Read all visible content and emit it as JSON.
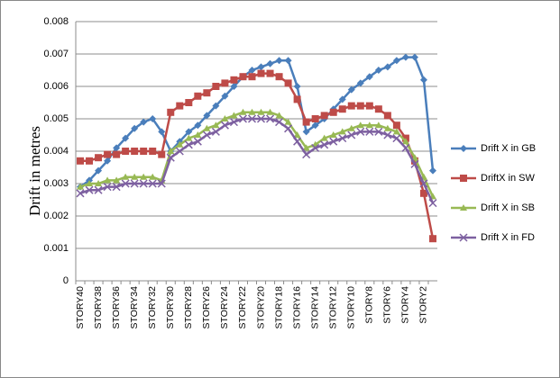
{
  "chart_data": {
    "type": "line",
    "y_label": "Drift in metres",
    "categories": [
      "STORY40",
      null,
      "STORY38",
      null,
      "STORY36",
      null,
      "STORY34",
      null,
      "STORY32",
      null,
      "STORY30",
      null,
      "STORY28",
      null,
      "STORY26",
      null,
      "STORY24",
      null,
      "STORY22",
      null,
      "STORY20",
      null,
      "STORY18",
      null,
      "STORY16",
      null,
      "STORY14",
      null,
      "STORY12",
      null,
      "STORY10",
      null,
      "STORY8",
      null,
      "STORY6",
      null,
      "STORY4",
      null,
      "STORY2",
      null
    ],
    "ylim": [
      0,
      0.008
    ],
    "yticks": [
      0,
      0.001,
      0.002,
      0.003,
      0.004,
      0.005,
      0.006,
      0.007,
      0.008
    ],
    "grid": true,
    "legend": "right",
    "series": [
      {
        "name": "Drift X in GB",
        "color": "#4a7ebb",
        "marker": "diamond",
        "values": [
          0.0029,
          0.0031,
          0.0034,
          0.0037,
          0.0041,
          0.0044,
          0.0047,
          0.0049,
          0.005,
          0.0046,
          0.004,
          0.0043,
          0.0046,
          0.0048,
          0.0051,
          0.0054,
          0.0057,
          0.006,
          0.0063,
          0.0065,
          0.0066,
          0.0067,
          0.0068,
          0.0068,
          0.006,
          0.0046,
          0.0048,
          0.005,
          0.0053,
          0.0056,
          0.0059,
          0.0061,
          0.0063,
          0.0065,
          0.0066,
          0.0068,
          0.0069,
          0.0069,
          0.0062,
          0.0034
        ]
      },
      {
        "name": "DriftX in SW",
        "color": "#be4b48",
        "marker": "square",
        "values": [
          0.0037,
          0.0037,
          0.0038,
          0.0039,
          0.0039,
          0.004,
          0.004,
          0.004,
          0.004,
          0.0039,
          0.0052,
          0.0054,
          0.0055,
          0.0057,
          0.0058,
          0.006,
          0.0061,
          0.0062,
          0.0063,
          0.0063,
          0.0064,
          0.0064,
          0.0063,
          0.0061,
          0.0056,
          0.0049,
          0.005,
          0.0051,
          0.0052,
          0.0053,
          0.0054,
          0.0054,
          0.0054,
          0.0053,
          0.0051,
          0.0048,
          0.0044,
          0.0037,
          0.0027,
          0.0013
        ]
      },
      {
        "name": "Drift X in SB",
        "color": "#98b954",
        "marker": "triangle",
        "values": [
          0.0029,
          0.003,
          0.003,
          0.0031,
          0.0031,
          0.0032,
          0.0032,
          0.0032,
          0.0032,
          0.0031,
          0.004,
          0.0042,
          0.0044,
          0.0045,
          0.0047,
          0.0048,
          0.005,
          0.0051,
          0.0052,
          0.0052,
          0.0052,
          0.0052,
          0.0051,
          0.0049,
          0.0045,
          0.0041,
          0.0042,
          0.0044,
          0.0045,
          0.0046,
          0.0047,
          0.0048,
          0.0048,
          0.0048,
          0.0047,
          0.0046,
          0.0043,
          0.0038,
          0.0032,
          0.0026
        ]
      },
      {
        "name": "Drift X in FD",
        "color": "#7d60a0",
        "marker": "x",
        "values": [
          0.0027,
          0.0028,
          0.0028,
          0.0029,
          0.0029,
          0.003,
          0.003,
          0.003,
          0.003,
          0.003,
          0.0038,
          0.004,
          0.0042,
          0.0043,
          0.0045,
          0.0046,
          0.0048,
          0.0049,
          0.005,
          0.005,
          0.005,
          0.005,
          0.0049,
          0.0047,
          0.0043,
          0.0039,
          0.0041,
          0.0042,
          0.0043,
          0.0044,
          0.0045,
          0.0046,
          0.0046,
          0.0046,
          0.0045,
          0.0044,
          0.0041,
          0.0036,
          0.003,
          0.0024
        ]
      }
    ]
  }
}
